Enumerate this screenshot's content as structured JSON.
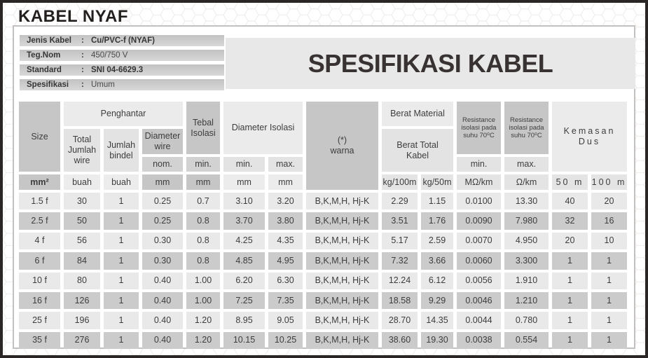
{
  "page_title": "KABEL NYAF",
  "info": {
    "rows": [
      {
        "label": "Jenis Kabel",
        "sep": ":",
        "value": "Cu/PVC-f (NYAF)",
        "bold": true
      },
      {
        "label": "Teg.Nom",
        "sep": ":",
        "value": "450/750 V",
        "bold": false
      },
      {
        "label": "Standard",
        "sep": ":",
        "value": "SNI 04-6629.3",
        "bold": true
      },
      {
        "label": "Spesifikasi",
        "sep": ":",
        "value": "Umum",
        "bold": false
      }
    ]
  },
  "banner": {
    "title": "SPESIFIKASI KABEL"
  },
  "table": {
    "header": {
      "size": "Size",
      "penghantar": "Penghantar",
      "total_jumlah_wire": "Total\nJumlah\nwire",
      "jumlah_bindel": "Jumlah\nbindel",
      "diameter_wire": "Diameter\nwire",
      "nom": "nom.",
      "tebal_isolasi": "Tebal\nIsolasi",
      "tebal_min": "min.",
      "diameter_isolasi": "Diameter Isolasi",
      "diameter_min": "min.",
      "diameter_max": "max.",
      "warna": "(*)\nwarna",
      "berat_material": "Berat Material",
      "berat_total_kabel": "Berat Total\nKabel",
      "resistance_min": "Resistance\nisolasi pada\nsuhu 70⁰C",
      "resistance_min_sub": "min.",
      "resistance_max": "Resistance\nisolasi pada\nsuhu 70⁰C",
      "resistance_max_sub": "max.",
      "kemasan_dus": "Kemasan\nDus"
    },
    "units": {
      "size": "mm²",
      "total_jumlah_wire": "buah",
      "jumlah_bindel": "buah",
      "diameter_wire": "mm",
      "tebal_isolasi": "mm",
      "diameter_min": "mm",
      "diameter_max": "mm",
      "berat_100": "kg/100m",
      "berat_50": "kg/50m",
      "resistance_min": "MΩ/km",
      "resistance_max": "Ω/km",
      "kemasan_50": "50 m",
      "kemasan_100": "100 m"
    },
    "rows": [
      {
        "cells": [
          "1.5 f",
          "30",
          "1",
          "0.25",
          "0.7",
          "3.10",
          "3.20",
          "B,K,M,H, Hj-K",
          "2.29",
          "1.15",
          "0.0100",
          "13.30",
          "40",
          "20"
        ]
      },
      {
        "cells": [
          "2.5 f",
          "50",
          "1",
          "0.25",
          "0.8",
          "3.70",
          "3.80",
          "B,K,M,H, Hj-K",
          "3.51",
          "1.76",
          "0.0090",
          "7.980",
          "32",
          "16"
        ]
      },
      {
        "cells": [
          "4 f",
          "56",
          "1",
          "0.30",
          "0.8",
          "4.25",
          "4.35",
          "B,K,M,H, Hj-K",
          "5.17",
          "2.59",
          "0.0070",
          "4.950",
          "20",
          "10"
        ]
      },
      {
        "cells": [
          "6 f",
          "84",
          "1",
          "0.30",
          "0.8",
          "4.85",
          "4.95",
          "B,K,M,H, Hj-K",
          "7.32",
          "3.66",
          "0.0060",
          "3.300",
          "1",
          "1"
        ]
      },
      {
        "cells": [
          "10 f",
          "80",
          "1",
          "0.40",
          "1.00",
          "6.20",
          "6.30",
          "B,K,M,H, Hj-K",
          "12.24",
          "6.12",
          "0.0056",
          "1.910",
          "1",
          "1"
        ]
      },
      {
        "cells": [
          "16 f",
          "126",
          "1",
          "0.40",
          "1.00",
          "7.25",
          "7.35",
          "B,K,M,H, Hj-K",
          "18.58",
          "9.29",
          "0.0046",
          "1.210",
          "1",
          "1"
        ]
      },
      {
        "cells": [
          "25 f",
          "196",
          "1",
          "0.40",
          "1.20",
          "8.95",
          "9.05",
          "B,K,M,H, Hj-K",
          "28.70",
          "14.35",
          "0.0044",
          "0.780",
          "1",
          "1"
        ]
      },
      {
        "cells": [
          "35 f",
          "276",
          "1",
          "0.40",
          "1.20",
          "10.15",
          "10.25",
          "B,K,M,H, Hj-K",
          "38.60",
          "19.30",
          "0.0038",
          "0.554",
          "1",
          "1"
        ]
      }
    ]
  },
  "colors": {
    "frame": "#2b2626",
    "header_dark": "#c6c6c6",
    "header_light": "#ebebeb",
    "stripe_light": "#e9e9e9",
    "stripe_dark": "#cbcbcb",
    "text": "#3d3d3d"
  }
}
